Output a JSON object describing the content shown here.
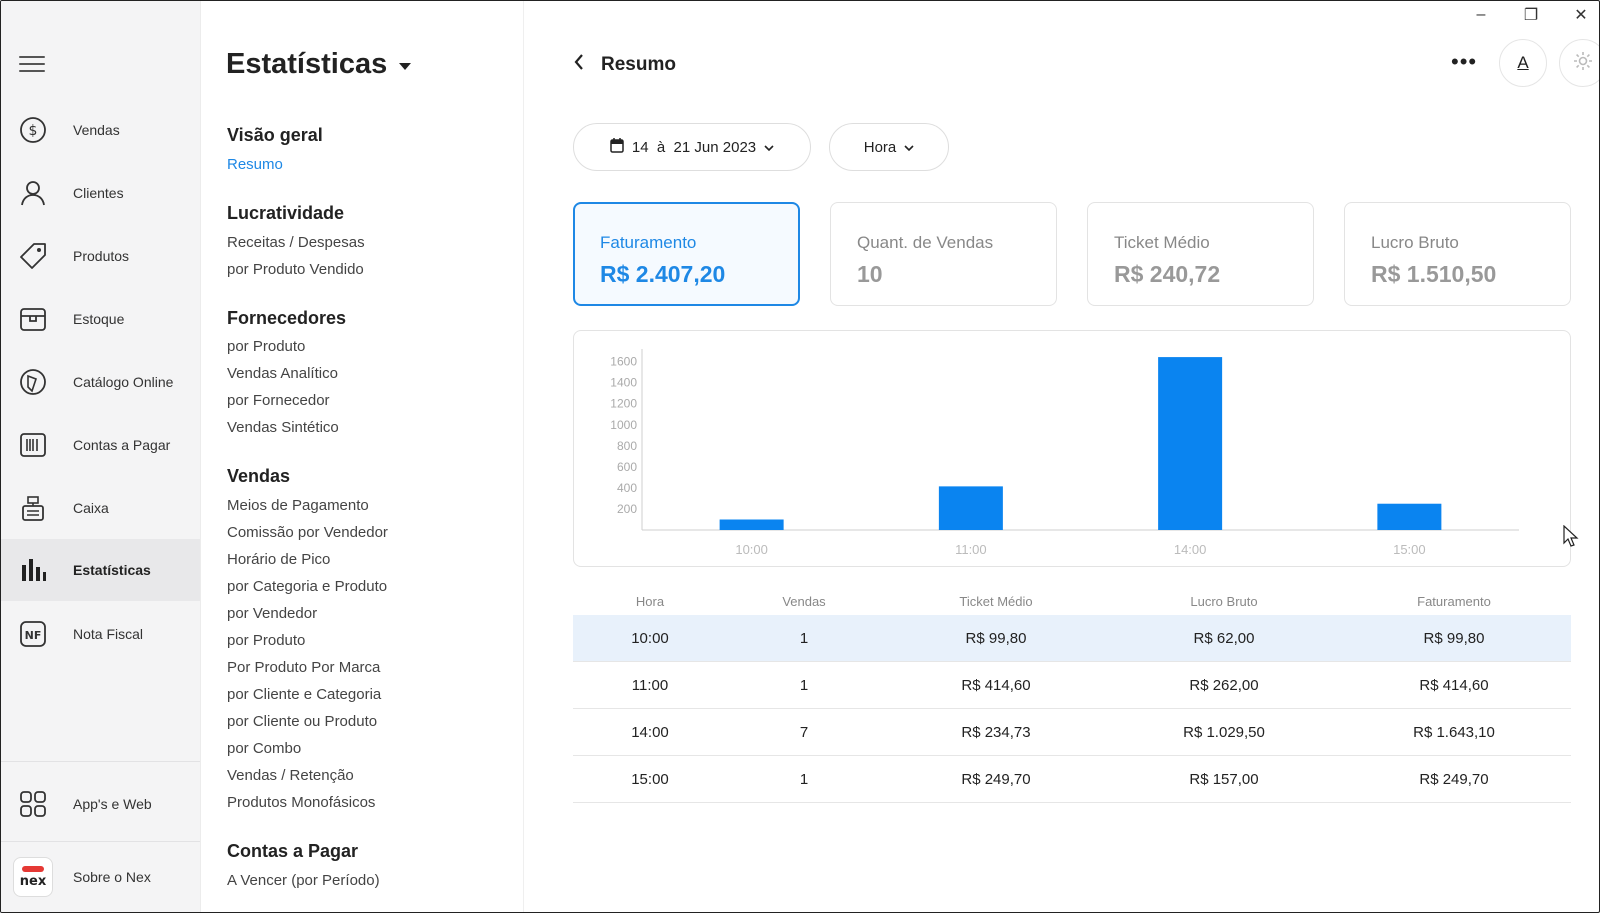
{
  "window": {
    "minimize": "–",
    "maximize": "❐",
    "close": "✕"
  },
  "nav": {
    "items": [
      {
        "label": "Vendas",
        "icon": "dollar-circle-icon"
      },
      {
        "label": "Clientes",
        "icon": "user-icon"
      },
      {
        "label": "Produtos",
        "icon": "tag-icon"
      },
      {
        "label": "Estoque",
        "icon": "box-icon"
      },
      {
        "label": "Catálogo Online",
        "icon": "catalog-icon"
      },
      {
        "label": "Contas a Pagar",
        "icon": "barcode-icon"
      },
      {
        "label": "Caixa",
        "icon": "cash-register-icon"
      },
      {
        "label": "Estatísticas",
        "icon": "bar-chart-icon",
        "active": true
      },
      {
        "label": "Nota Fiscal",
        "icon": "nf-icon"
      }
    ],
    "apps": "App's e Web",
    "about": "Sobre o Nex",
    "logo_text": "nex"
  },
  "submenu": {
    "title": "Estatísticas",
    "sections": [
      {
        "title": "Visão geral",
        "links": [
          "Resumo"
        ]
      },
      {
        "title": "Lucratividade",
        "links": [
          "Receitas / Despesas",
          "por Produto Vendido"
        ]
      },
      {
        "title": "Fornecedores",
        "links": [
          "por Produto",
          "Vendas Analítico",
          "por Fornecedor",
          "Vendas Sintético"
        ]
      },
      {
        "title": "Vendas",
        "links": [
          "Meios de Pagamento",
          "Comissão por Vendedor",
          "Horário de Pico",
          "por Categoria e Produto",
          "por Vendedor",
          "por Produto",
          "Por Produto Por Marca",
          "por Cliente e Categoria",
          "por Cliente ou Produto",
          "por Combo",
          "Vendas / Retenção",
          "Produtos Monofásicos"
        ]
      },
      {
        "title": "Contas a Pagar",
        "links": [
          "A Vencer (por Período)"
        ]
      }
    ]
  },
  "main": {
    "back_title": "Resumo",
    "more": "•••",
    "font_btn": "A",
    "date_filter": "14  à  21 Jun 2023",
    "group_filter": "Hora",
    "cards": [
      {
        "label": "Faturamento",
        "value": "R$ 2.407,20",
        "active": true
      },
      {
        "label": "Quant. de Vendas",
        "value": "10"
      },
      {
        "label": "Ticket Médio",
        "value": "R$ 240,72"
      },
      {
        "label": "Lucro Bruto",
        "value": "R$ 1.510,50"
      }
    ],
    "table": {
      "headers": [
        "Hora",
        "Vendas",
        "Ticket Médio",
        "Lucro Bruto",
        "Faturamento"
      ],
      "rows": [
        [
          "10:00",
          "1",
          "R$ 99,80",
          "R$ 62,00",
          "R$ 99,80"
        ],
        [
          "11:00",
          "1",
          "R$ 414,60",
          "R$ 262,00",
          "R$ 414,60"
        ],
        [
          "14:00",
          "7",
          "R$ 234,73",
          "R$ 1.029,50",
          "R$ 1.643,10"
        ],
        [
          "15:00",
          "1",
          "R$ 249,70",
          "R$ 157,00",
          "R$ 249,70"
        ]
      ]
    }
  },
  "chart_data": {
    "type": "bar",
    "categories": [
      "10:00",
      "11:00",
      "14:00",
      "15:00"
    ],
    "values": [
      99.8,
      414.6,
      1643.1,
      249.7
    ],
    "yticks": [
      200,
      400,
      600,
      800,
      1000,
      1200,
      1400,
      1600
    ],
    "ylim": [
      0,
      1720
    ],
    "bar_color": "#0a84f0",
    "grid": false
  },
  "colors": {
    "accent": "#1e88e5",
    "row_highlight": "#e8f1fb"
  }
}
